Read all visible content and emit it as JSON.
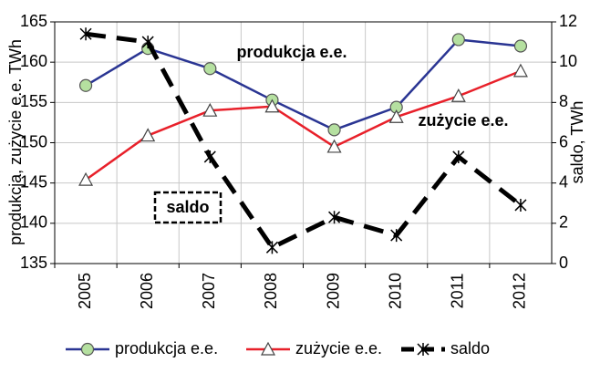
{
  "chart_data": {
    "type": "line",
    "categories": [
      "2005",
      "2006",
      "2007",
      "2008",
      "2009",
      "2010",
      "2011",
      "2012"
    ],
    "series": [
      {
        "name": "produkcja e.e.",
        "color": "#2a3593",
        "marker": "circle",
        "values": [
          157.1,
          161.7,
          159.2,
          155.3,
          151.6,
          154.4,
          162.8,
          162.0
        ]
      },
      {
        "name": "zużycie e.e.",
        "color": "#e8202a",
        "marker": "triangle",
        "values": [
          145.4,
          150.9,
          154.0,
          154.5,
          149.5,
          153.2,
          155.8,
          158.9
        ]
      },
      {
        "name": "saldo",
        "color": "#000000",
        "marker": "star",
        "dashed": true,
        "axis": "y2",
        "values": [
          11.4,
          11.0,
          5.3,
          0.8,
          2.3,
          1.4,
          5.3,
          2.9
        ]
      }
    ],
    "ylabel": "produkcja, zużycie e.e. TWh",
    "y2label": "saldo, TWh",
    "ylim": [
      135,
      165
    ],
    "yticks": [
      135,
      140,
      145,
      150,
      155,
      160,
      165
    ],
    "y2lim": [
      0,
      12
    ],
    "y2ticks": [
      0,
      2,
      4,
      6,
      8,
      10,
      12
    ],
    "grid": true,
    "legend": "bottom",
    "annotations": [
      "produkcja e.e.",
      "zużycie e.e.",
      "saldo"
    ]
  }
}
